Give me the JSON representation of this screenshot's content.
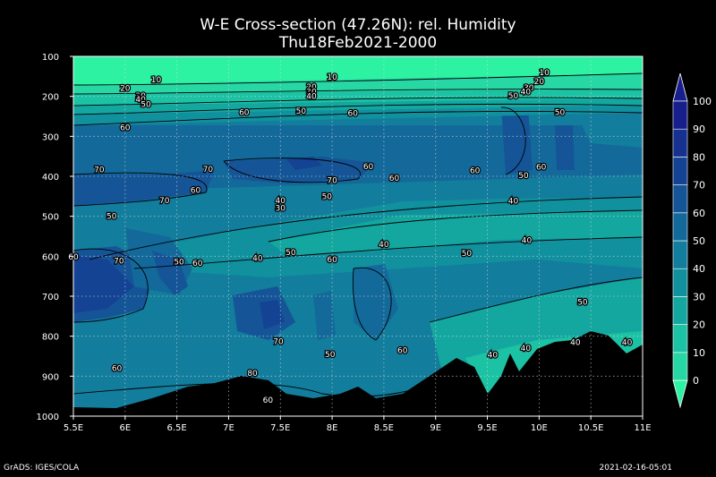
{
  "chart_data": {
    "type": "heatmap",
    "title": "W-E Cross-section (47.26N): rel. Humidity",
    "subtitle": "Thu18Feb2021-2000",
    "x_ticks": [
      "5.5E",
      "6E",
      "6.5E",
      "7E",
      "7.5E",
      "8E",
      "8.5E",
      "9E",
      "9.5E",
      "10E",
      "10.5E",
      "11E"
    ],
    "x_range": [
      5.5,
      11
    ],
    "y_ticks": [
      "100",
      "200",
      "300",
      "400",
      "500",
      "600",
      "700",
      "800",
      "900",
      "1000"
    ],
    "y_range": [
      100,
      1000
    ],
    "y_axis": "pressure (hPa), inverted",
    "grid": true,
    "colorbar": {
      "levels": [
        "0",
        "10",
        "20",
        "30",
        "40",
        "50",
        "60",
        "70",
        "80",
        "90",
        "100"
      ],
      "colors": [
        "#2cf2a2",
        "#28d8a4",
        "#1cc2a4",
        "#13a7a0",
        "#11909e",
        "#127d9c",
        "#13699a",
        "#155597",
        "#154394",
        "#163190",
        "#171f8c"
      ]
    },
    "contour_labels": [
      {
        "text": "10",
        "x": 6.3,
        "y": 158
      },
      {
        "text": "20",
        "x": 6.0,
        "y": 180
      },
      {
        "text": "30",
        "x": 6.15,
        "y": 198
      },
      {
        "text": "40",
        "x": 6.15,
        "y": 208
      },
      {
        "text": "50",
        "x": 6.2,
        "y": 220
      },
      {
        "text": "60",
        "x": 6.0,
        "y": 278
      },
      {
        "text": "70",
        "x": 5.75,
        "y": 383
      },
      {
        "text": "70",
        "x": 6.8,
        "y": 382
      },
      {
        "text": "60",
        "x": 6.68,
        "y": 435
      },
      {
        "text": "70",
        "x": 6.38,
        "y": 460
      },
      {
        "text": "50",
        "x": 5.87,
        "y": 500
      },
      {
        "text": "60",
        "x": 5.5,
        "y": 602
      },
      {
        "text": "70",
        "x": 5.94,
        "y": 612
      },
      {
        "text": "50",
        "x": 6.52,
        "y": 614
      },
      {
        "text": "60",
        "x": 6.7,
        "y": 617
      },
      {
        "text": "40",
        "x": 7.28,
        "y": 605
      },
      {
        "text": "50",
        "x": 7.6,
        "y": 590
      },
      {
        "text": "60",
        "x": 8.0,
        "y": 608
      },
      {
        "text": "40",
        "x": 8.5,
        "y": 570
      },
      {
        "text": "50",
        "x": 9.3,
        "y": 593
      },
      {
        "text": "40",
        "x": 9.88,
        "y": 560
      },
      {
        "text": "50",
        "x": 10.42,
        "y": 715
      },
      {
        "text": "40",
        "x": 10.35,
        "y": 815
      },
      {
        "text": "40",
        "x": 10.85,
        "y": 815
      },
      {
        "text": "40",
        "x": 9.87,
        "y": 830
      },
      {
        "text": "40",
        "x": 9.55,
        "y": 847
      },
      {
        "text": "60",
        "x": 8.68,
        "y": 835
      },
      {
        "text": "50",
        "x": 7.98,
        "y": 845
      },
      {
        "text": "70",
        "x": 7.48,
        "y": 813
      },
      {
        "text": "60",
        "x": 5.92,
        "y": 880
      },
      {
        "text": "80",
        "x": 7.23,
        "y": 893
      },
      {
        "text": "60",
        "x": 7.38,
        "y": 960
      },
      {
        "text": "40",
        "x": 7.5,
        "y": 460
      },
      {
        "text": "30",
        "x": 7.5,
        "y": 480
      },
      {
        "text": "50",
        "x": 7.95,
        "y": 450
      },
      {
        "text": "70",
        "x": 8.0,
        "y": 410
      },
      {
        "text": "60",
        "x": 8.35,
        "y": 375
      },
      {
        "text": "60",
        "x": 8.6,
        "y": 405
      },
      {
        "text": "60",
        "x": 8.2,
        "y": 242
      },
      {
        "text": "60",
        "x": 7.15,
        "y": 240
      },
      {
        "text": "50",
        "x": 7.7,
        "y": 237
      },
      {
        "text": "10",
        "x": 8.0,
        "y": 152
      },
      {
        "text": "20",
        "x": 7.8,
        "y": 176
      },
      {
        "text": "30",
        "x": 7.8,
        "y": 188
      },
      {
        "text": "40",
        "x": 7.8,
        "y": 200
      },
      {
        "text": "40",
        "x": 9.75,
        "y": 462
      },
      {
        "text": "60",
        "x": 9.38,
        "y": 386
      },
      {
        "text": "50",
        "x": 9.85,
        "y": 398
      },
      {
        "text": "60",
        "x": 10.02,
        "y": 377
      },
      {
        "text": "50",
        "x": 10.2,
        "y": 240
      },
      {
        "text": "10",
        "x": 10.05,
        "y": 140
      },
      {
        "text": "20",
        "x": 10.0,
        "y": 163
      },
      {
        "text": "30",
        "x": 9.9,
        "y": 178
      },
      {
        "text": "40",
        "x": 9.87,
        "y": 188
      },
      {
        "text": "50",
        "x": 9.75,
        "y": 198
      }
    ]
  },
  "footer": {
    "left": "GrADS: IGES/COLA",
    "right": "2021-02-16-05:01"
  }
}
